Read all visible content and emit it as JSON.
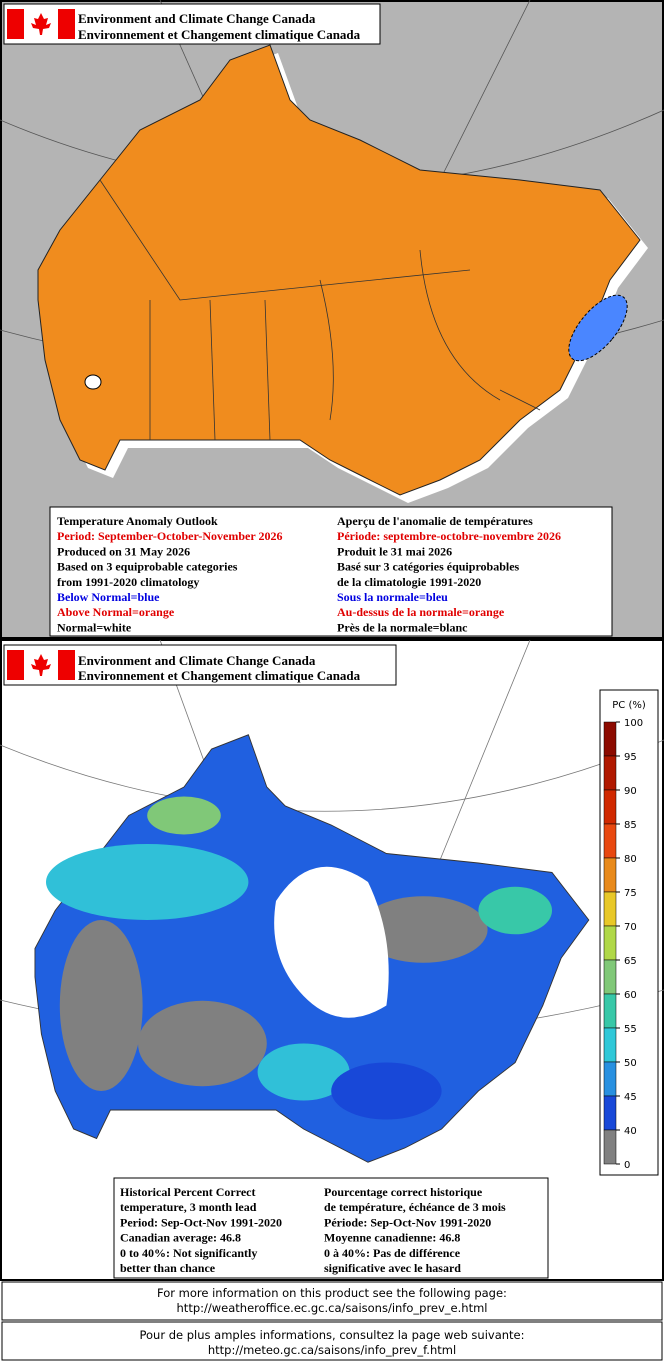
{
  "top_panel": {
    "header": {
      "line1": "Environment and Climate Change Canada",
      "line2": "Environnement et Changement climatique Canada"
    },
    "legend": {
      "english": [
        "Temperature Anomaly Outlook",
        "Period: September-October-November 2026",
        "Produced on 31 May 2026",
        "Based on 3 equiprobable categories",
        "from 1991-2020 climatology",
        "Below Normal=blue",
        "Above Normal=orange",
        "Normal=white"
      ],
      "french": [
        "Aperçu de l'anomalie de températures",
        "Période: septembre-octobre-novembre 2026",
        "Produit le 31 mai 2026",
        "Basé sur 3 catégories équiprobables",
        "de la climatologie 1991-2020",
        "Sous la normale=bleu",
        "Au-dessus de la normale=orange",
        "Près de la normale=blanc"
      ]
    }
  },
  "bottom_panel": {
    "header": {
      "line1": "Environment and Climate Change Canada",
      "line2": "Environnement et Changement climatique Canada"
    },
    "colorbar": {
      "title": "PC (%)",
      "ticks": [
        100,
        95,
        90,
        85,
        80,
        75,
        70,
        65,
        60,
        55,
        50,
        45,
        40,
        0
      ],
      "colors": [
        "#8c0a00",
        "#b01800",
        "#d02800",
        "#e84810",
        "#e88a1c",
        "#e8c828",
        "#b0d848",
        "#80c878",
        "#38c8a8",
        "#30c8d8",
        "#2890e0",
        "#1848d8",
        "#808080"
      ]
    },
    "legend": {
      "english": [
        "Historical Percent Correct",
        "temperature, 3 month lead",
        "Period: Sep-Oct-Nov 1991-2020",
        "Canadian average: 46.8",
        "0 to 40%: Not significantly",
        "better than chance"
      ],
      "french": [
        "Pourcentage correct historique",
        "de température, échéance de 3 mois",
        "Période: Sep-Oct-Nov 1991-2020",
        "Moyenne canadienne: 46.8",
        "0 à 40%: Pas de différence",
        "significative avec le hasard"
      ]
    }
  },
  "footer": {
    "english": [
      "For more information on this product see the following page:",
      "http://weatheroffice.ec.gc.ca/saisons/info_prev_e.html"
    ],
    "french": [
      "Pour de plus amples informations, consultez la page web suivante:",
      "http://meteo.gc.ca/saisons/info_prev_f.html"
    ]
  }
}
